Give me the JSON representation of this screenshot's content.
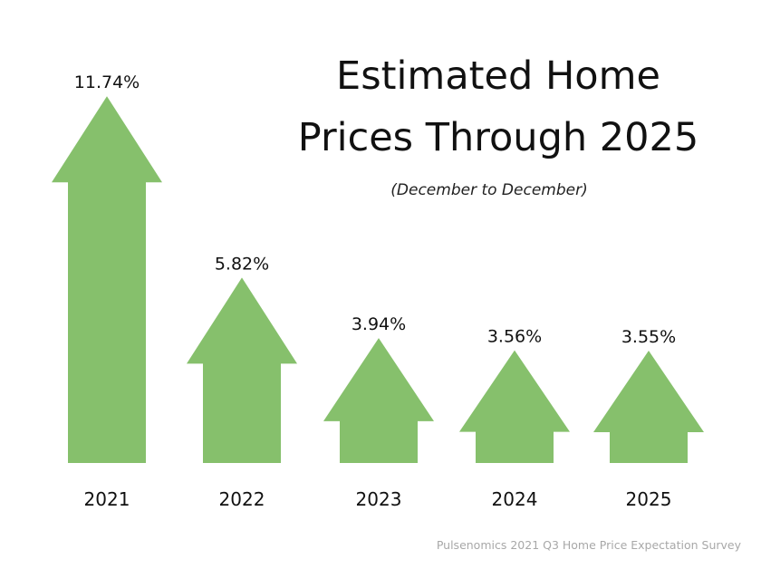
{
  "chart_data": {
    "type": "bar",
    "title_lines": [
      "Estimated Home",
      "Prices Through 2025"
    ],
    "subtitle": "(December to December)",
    "categories": [
      "2021",
      "2022",
      "2023",
      "2024",
      "2025"
    ],
    "values": [
      11.74,
      5.82,
      3.94,
      3.56,
      3.55
    ],
    "value_labels": [
      "11.74%",
      "5.82%",
      "3.94%",
      "3.56%",
      "3.55%"
    ],
    "unit": "%",
    "grid": false,
    "bar_shape": "up-arrow",
    "colors": {
      "bar": "#86c06c",
      "text": "#111111"
    },
    "source": "Pulsenomics 2021 Q3 Home Price Expectation Survey"
  }
}
